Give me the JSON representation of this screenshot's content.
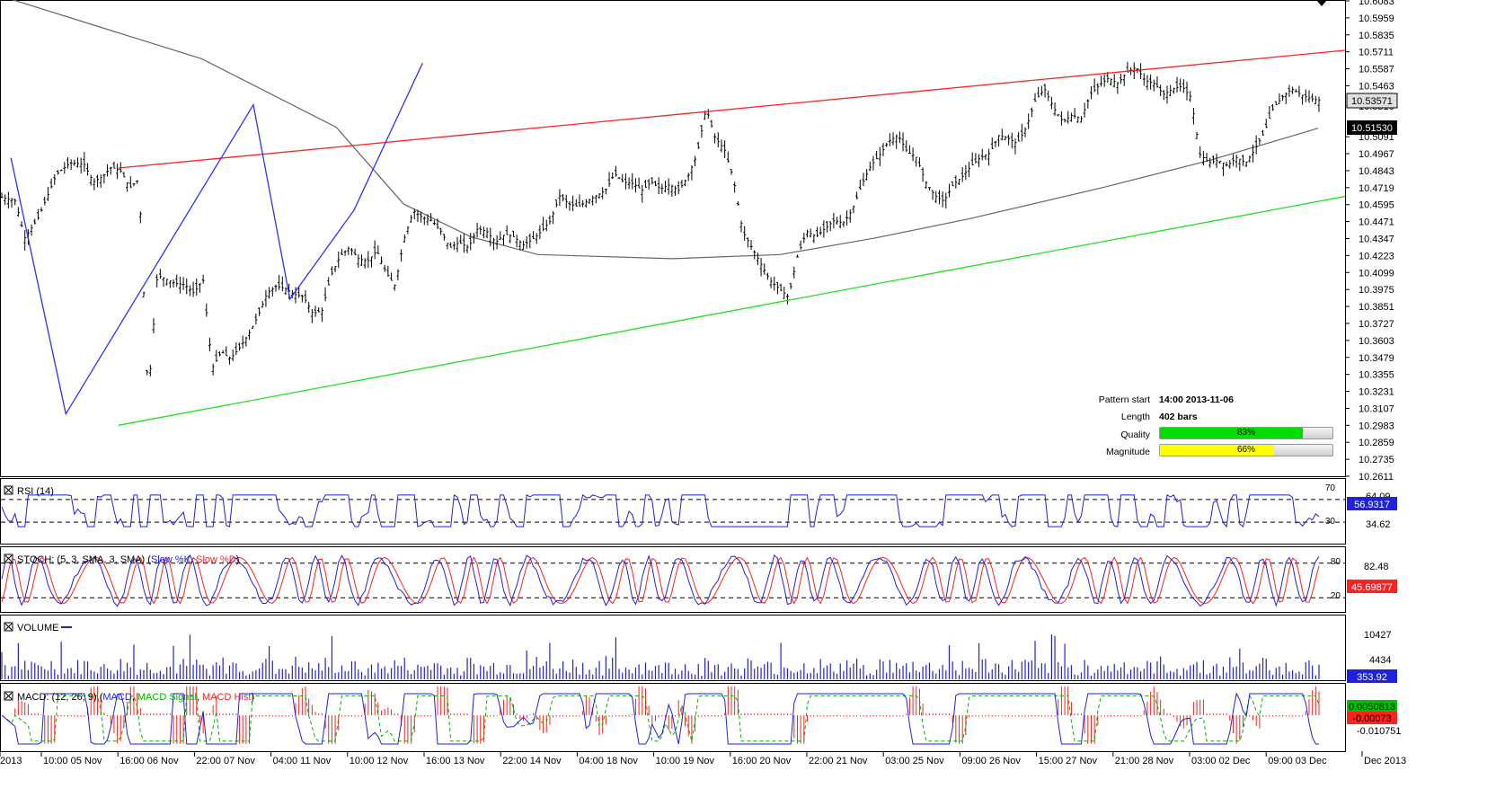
{
  "colors": {
    "resistance": "#ff2020",
    "support": "#20e020",
    "zigzag": "#3030ff",
    "price": "#000000",
    "ma": "#666666",
    "rsi": "#2020e0",
    "stoch_k": "#2020e0",
    "stoch_d": "#ff2020",
    "volume": "#2020e0",
    "macd": "#2020e0",
    "macd_signal": "#00b000",
    "macd_hist": "#ff2020",
    "quality_fill": "#00dd00",
    "magnitude_fill": "#ffff00"
  },
  "panels": {
    "rsi": {
      "title": "RSI (14)",
      "levels": [
        "70",
        "30"
      ],
      "axis_labels": [
        "64.09",
        "34.62"
      ],
      "current": "56.9317"
    },
    "stoch": {
      "title": "STOCH: (5, 3, SMA, 3, SMA)",
      "series_k": "Slow %K",
      "series_d": "Slow %D",
      "levels": [
        "80",
        "20"
      ],
      "axis_labels": [
        "82.48"
      ],
      "current": "45.69877"
    },
    "volume": {
      "title": "VOLUME",
      "axis_labels": [
        "10427",
        "4434"
      ],
      "current": "353.92"
    },
    "macd": {
      "title": "MACD: (12, 26, 9)",
      "series_macd": "MACD",
      "series_signal": "MACD Signal",
      "series_hist": "MACD Hist",
      "axis_labels": [
        "-0.010751"
      ],
      "current_macd": "0.0050813",
      "current_hist": "-0.00073"
    }
  },
  "pattern_info": {
    "start_label": "Pattern start",
    "start_value": "14:00 2013-11-06",
    "length_label": "Length",
    "length_value": "402 bars",
    "quality_label": "Quality",
    "quality_value": "83%",
    "quality_fraction": 0.83,
    "magnitude_label": "Magnitude",
    "magnitude_value": "66%",
    "magnitude_fraction": 0.66
  },
  "chart_data": {
    "type": "candlestick",
    "title": "",
    "price_axis_labels": [
      "10.6083",
      "10.5959",
      "10.5835",
      "10.5711",
      "10.5587",
      "10.5463",
      "10.5316",
      "10.5091",
      "10.4967",
      "10.4843",
      "10.4719",
      "10.4595",
      "10.4471",
      "10.4347",
      "10.4223",
      "10.4099",
      "10.3975",
      "10.3851",
      "10.3727",
      "10.3603",
      "10.3479",
      "10.3355",
      "10.3231",
      "10.3107",
      "10.2983",
      "10.2859",
      "10.2735",
      "10.2611"
    ],
    "ylim": [
      10.2611,
      10.6083
    ],
    "current_price": "10.53571",
    "ma_value": "10.51530",
    "x_tick_labels": [
      "2013",
      "10:00 05 Nov",
      "16:00 06 Nov",
      "22:00 07 Nov",
      "04:00 11 Nov",
      "10:00 12 Nov",
      "16:00 13 Nov",
      "22:00 14 Nov",
      "04:00 18 Nov",
      "10:00 19 Nov",
      "16:00 20 Nov",
      "22:00 21 Nov",
      "03:00 25 Nov",
      "09:00 26 Nov",
      "15:00 27 Nov",
      "21:00 28 Nov",
      "03:00 02 Dec",
      "09:00 03 Dec",
      "Dec 2013"
    ],
    "resistance_line": [
      [
        0.0,
        10.4862
      ],
      [
        1.0,
        10.5722
      ]
    ],
    "support_line": [
      [
        0.0,
        10.2983
      ],
      [
        1.0,
        10.4655
      ]
    ],
    "zigzag": [
      [
        0.2,
        10.4937
      ],
      [
        1.4,
        10.3066
      ],
      [
        5.5,
        10.5324
      ],
      [
        6.3,
        10.3905
      ],
      [
        7.7,
        10.4554
      ],
      [
        9.2,
        10.5629
      ]
    ],
    "price_path": [
      [
        0.0,
        10.465
      ],
      [
        0.3,
        10.462
      ],
      [
        0.5,
        10.435
      ],
      [
        0.8,
        10.45
      ],
      [
        1.2,
        10.482
      ],
      [
        1.5,
        10.49
      ],
      [
        1.8,
        10.489
      ],
      [
        2.0,
        10.476
      ],
      [
        2.2,
        10.48
      ],
      [
        2.4,
        10.487
      ],
      [
        2.6,
        10.484
      ],
      [
        2.8,
        10.472
      ],
      [
        3.0,
        10.478
      ],
      [
        3.2,
        10.318
      ],
      [
        3.4,
        10.408
      ],
      [
        3.6,
        10.405
      ],
      [
        3.8,
        10.402
      ],
      [
        4.0,
        10.401
      ],
      [
        4.2,
        10.395
      ],
      [
        4.4,
        10.405
      ],
      [
        4.6,
        10.34
      ],
      [
        4.8,
        10.352
      ],
      [
        5.0,
        10.347
      ],
      [
        5.2,
        10.355
      ],
      [
        5.4,
        10.365
      ],
      [
        5.6,
        10.378
      ],
      [
        5.8,
        10.395
      ],
      [
        6.0,
        10.4
      ],
      [
        6.2,
        10.398
      ],
      [
        6.4,
        10.394
      ],
      [
        6.6,
        10.392
      ],
      [
        6.8,
        10.38
      ],
      [
        7.0,
        10.382
      ],
      [
        7.2,
        10.408
      ],
      [
        7.4,
        10.422
      ],
      [
        7.6,
        10.428
      ],
      [
        7.8,
        10.42
      ],
      [
        8.0,
        10.418
      ],
      [
        8.2,
        10.426
      ],
      [
        8.4,
        10.41
      ],
      [
        8.6,
        10.4
      ],
      [
        8.8,
        10.435
      ],
      [
        9.0,
        10.455
      ],
      [
        9.2,
        10.45
      ],
      [
        9.4,
        10.448
      ],
      [
        9.6,
        10.44
      ],
      [
        9.8,
        10.428
      ],
      [
        10.0,
        10.432
      ],
      [
        10.2,
        10.428
      ],
      [
        10.4,
        10.442
      ],
      [
        10.6,
        10.44
      ],
      [
        10.8,
        10.432
      ],
      [
        11.0,
        10.438
      ],
      [
        11.2,
        10.436
      ],
      [
        11.4,
        10.43
      ],
      [
        11.6,
        10.434
      ],
      [
        11.8,
        10.44
      ],
      [
        12.0,
        10.448
      ],
      [
        12.2,
        10.466
      ],
      [
        12.4,
        10.46
      ],
      [
        12.6,
        10.458
      ],
      [
        12.8,
        10.462
      ],
      [
        13.0,
        10.466
      ],
      [
        13.2,
        10.47
      ],
      [
        13.4,
        10.482
      ],
      [
        13.6,
        10.476
      ],
      [
        13.8,
        10.475
      ],
      [
        14.0,
        10.47
      ],
      [
        14.2,
        10.476
      ],
      [
        14.4,
        10.471
      ],
      [
        14.6,
        10.474
      ],
      [
        14.8,
        10.47
      ],
      [
        15.0,
        10.48
      ],
      [
        15.2,
        10.496
      ],
      [
        15.4,
        10.53
      ],
      [
        15.6,
        10.508
      ],
      [
        15.8,
        10.5
      ],
      [
        16.0,
        10.478
      ],
      [
        16.2,
        10.44
      ],
      [
        16.4,
        10.428
      ],
      [
        16.6,
        10.416
      ],
      [
        16.8,
        10.404
      ],
      [
        17.0,
        10.398
      ],
      [
        17.2,
        10.392
      ],
      [
        17.4,
        10.422
      ],
      [
        17.6,
        10.44
      ],
      [
        17.8,
        10.436
      ],
      [
        18.0,
        10.442
      ],
      [
        18.2,
        10.448
      ],
      [
        18.4,
        10.446
      ],
      [
        18.6,
        10.456
      ],
      [
        18.8,
        10.474
      ],
      [
        19.0,
        10.488
      ],
      [
        19.2,
        10.496
      ],
      [
        19.4,
        10.506
      ],
      [
        19.6,
        10.51
      ],
      [
        19.8,
        10.498
      ],
      [
        20.0,
        10.494
      ],
      [
        20.2,
        10.476
      ],
      [
        20.4,
        10.466
      ],
      [
        20.6,
        10.462
      ],
      [
        20.8,
        10.474
      ],
      [
        21.0,
        10.48
      ],
      [
        21.2,
        10.488
      ],
      [
        21.4,
        10.494
      ],
      [
        21.6,
        10.497
      ],
      [
        21.8,
        10.51
      ],
      [
        22.0,
        10.508
      ],
      [
        22.2,
        10.504
      ],
      [
        22.4,
        10.516
      ],
      [
        22.6,
        10.536
      ],
      [
        22.8,
        10.544
      ],
      [
        23.0,
        10.53
      ],
      [
        23.2,
        10.52
      ],
      [
        23.4,
        10.525
      ],
      [
        23.6,
        10.522
      ],
      [
        23.8,
        10.54
      ],
      [
        24.0,
        10.547
      ],
      [
        24.2,
        10.552
      ],
      [
        24.4,
        10.548
      ],
      [
        24.6,
        10.556
      ],
      [
        24.8,
        10.56
      ],
      [
        25.0,
        10.55
      ],
      [
        25.2,
        10.548
      ],
      [
        25.4,
        10.54
      ],
      [
        25.6,
        10.544
      ],
      [
        25.8,
        10.546
      ],
      [
        26.0,
        10.538
      ],
      [
        26.2,
        10.496
      ],
      [
        26.4,
        10.49
      ],
      [
        26.6,
        10.492
      ],
      [
        26.8,
        10.488
      ],
      [
        27.0,
        10.494
      ],
      [
        27.2,
        10.49
      ],
      [
        27.4,
        10.5
      ],
      [
        27.6,
        10.512
      ],
      [
        27.8,
        10.53
      ],
      [
        28.0,
        10.538
      ],
      [
        28.2,
        10.544
      ],
      [
        28.4,
        10.54
      ],
      [
        28.6,
        10.537
      ],
      [
        28.8,
        10.5357
      ]
    ],
    "ma_path": [
      [
        0.0,
        10.612
      ],
      [
        0.15,
        10.566
      ],
      [
        0.25,
        10.516
      ],
      [
        0.3,
        10.46
      ],
      [
        0.35,
        10.436
      ],
      [
        0.4,
        10.423
      ],
      [
        0.5,
        10.42
      ],
      [
        0.58,
        10.423
      ],
      [
        0.65,
        10.435
      ],
      [
        0.72,
        10.449
      ],
      [
        0.82,
        10.472
      ],
      [
        0.9,
        10.492
      ],
      [
        0.98,
        10.5153
      ]
    ]
  }
}
